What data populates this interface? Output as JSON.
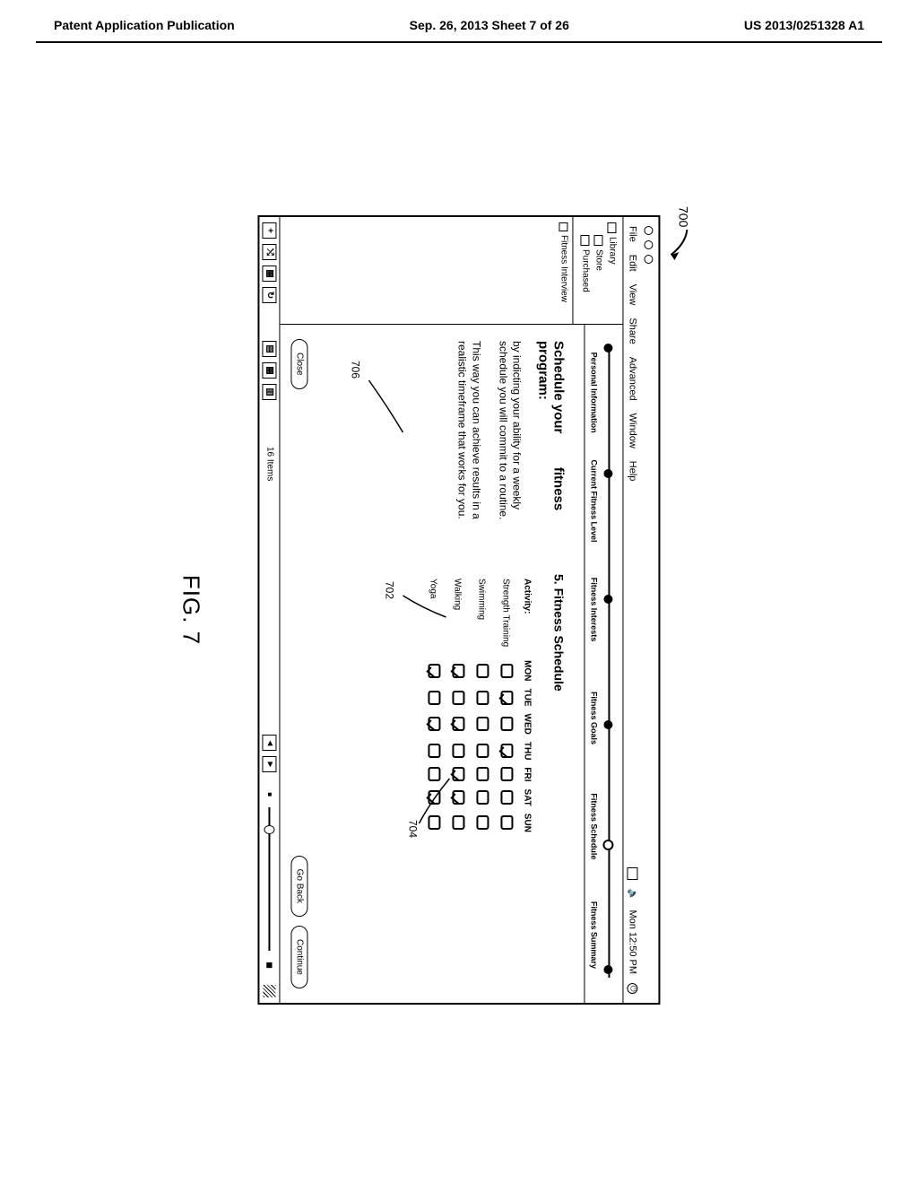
{
  "header": {
    "left": "Patent Application Publication",
    "center": "Sep. 26, 2013  Sheet 7 of 26",
    "right": "US 2013/0251328 A1"
  },
  "figure": {
    "ref_number": "700",
    "label": "FIG. 7",
    "callouts": {
      "c702": "702",
      "c704": "704",
      "c706": "706"
    }
  },
  "menubar": {
    "items": [
      "File",
      "Edit",
      "View",
      "Share",
      "Advanced",
      "Window",
      "Help"
    ],
    "clock": "Mon 12:50 PM"
  },
  "sidebar": {
    "items": [
      {
        "label": "Library",
        "indent": false
      },
      {
        "label": "Store",
        "indent": true
      },
      {
        "label": "Purchased",
        "indent": true
      }
    ],
    "sub_label": "Fitness Interview"
  },
  "progress": {
    "steps": [
      "Personal Information",
      "Current Fitness Level",
      "Fitness Interests",
      "Fitness Goals",
      "Fitness Schedule",
      "Fitness Summary"
    ],
    "active_index": 4
  },
  "content": {
    "left_title_line1": "Schedule your",
    "left_title_right": "fitness",
    "left_title_line2": "program:",
    "para1": "by indicting your ability for a weekly schedule you will commit to a routine.",
    "para2": "This way you can achieve results in a realistic timeframe that works for you.",
    "section_title": "5. Fitness Schedule",
    "col_activity": "Activity:",
    "days": [
      "MON",
      "TUE",
      "WED",
      "THU",
      "FRI",
      "SAT",
      "SUN"
    ],
    "rows": [
      {
        "activity": "Strength Training",
        "checks": [
          false,
          true,
          false,
          true,
          false,
          false,
          false
        ]
      },
      {
        "activity": "Swimming",
        "checks": [
          false,
          false,
          false,
          false,
          false,
          false,
          false
        ]
      },
      {
        "activity": "Walking",
        "checks": [
          true,
          false,
          true,
          false,
          true,
          true,
          false
        ]
      },
      {
        "activity": "Yoga",
        "checks": [
          true,
          false,
          true,
          false,
          false,
          true,
          false
        ]
      }
    ]
  },
  "buttons": {
    "close": "Close",
    "back": "Go Back",
    "cont": "Continue"
  },
  "bottombar": {
    "items_text": "16 Items"
  }
}
